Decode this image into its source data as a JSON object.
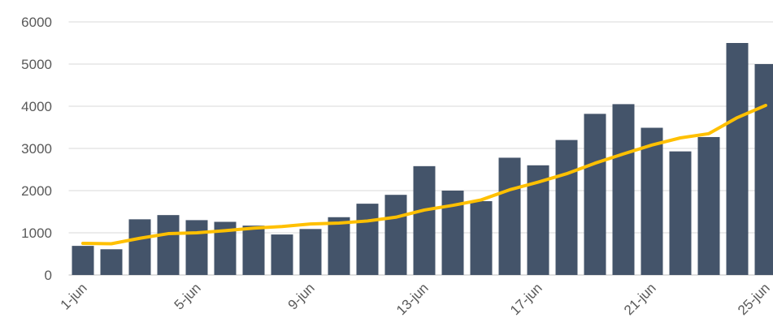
{
  "chart_data": {
    "type": "bar-line",
    "categories": [
      "1-jun",
      null,
      null,
      null,
      "5-jun",
      null,
      null,
      null,
      "9-jun",
      null,
      null,
      null,
      "13-jun",
      null,
      null,
      null,
      "17-jun",
      null,
      null,
      null,
      "21-jun",
      null,
      null,
      null,
      "25-jun"
    ],
    "series": [
      {
        "type": "bar",
        "color": "#44546a",
        "values": [
          690,
          610,
          1320,
          1420,
          1300,
          1260,
          1170,
          960,
          1090,
          1370,
          1690,
          1900,
          2580,
          2000,
          1750,
          2780,
          2600,
          3200,
          3820,
          4050,
          3490,
          2930,
          3270,
          5500,
          5000
        ]
      },
      {
        "type": "line",
        "color": "#ffc000",
        "values": [
          750,
          740,
          870,
          980,
          1000,
          1050,
          1110,
          1150,
          1210,
          1230,
          1280,
          1370,
          1540,
          1650,
          1780,
          2020,
          2200,
          2400,
          2650,
          2870,
          3080,
          3250,
          3350,
          3730,
          4020
        ]
      }
    ],
    "ylim": [
      0,
      6000
    ],
    "yticks": [
      0,
      1000,
      2000,
      3000,
      4000,
      5000,
      6000
    ],
    "grid": true
  }
}
